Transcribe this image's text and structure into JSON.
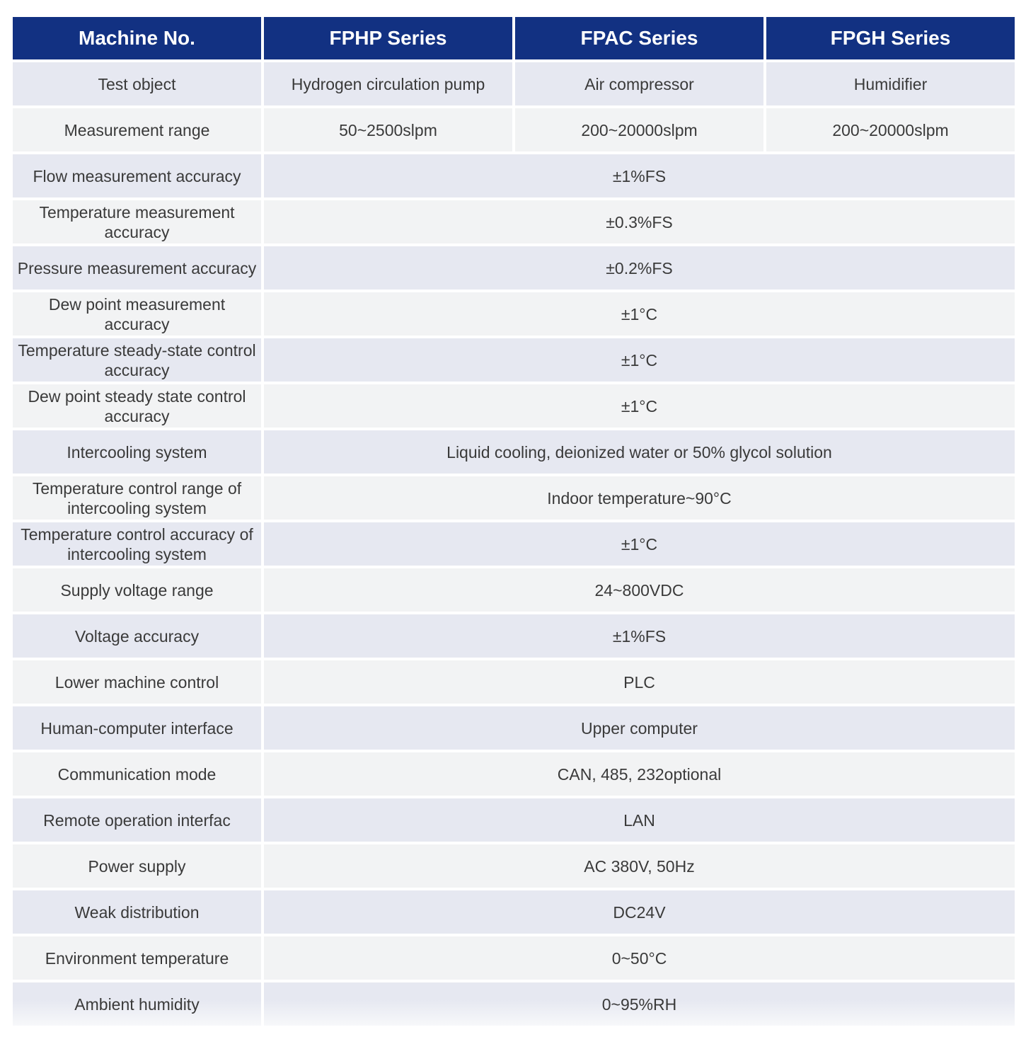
{
  "table": {
    "headers": [
      "Machine No.",
      "FPHP Series",
      "FPAC Series",
      "FPGH Series"
    ],
    "rows": [
      {
        "label": "Test object",
        "values": [
          "Hydrogen circulation pump",
          "Air compressor",
          "Humidifier"
        ]
      },
      {
        "label": "Measurement range",
        "values": [
          "50~2500slpm",
          "200~20000slpm",
          "200~20000slpm"
        ]
      },
      {
        "label": "Flow measurement accuracy",
        "value": "±1%FS"
      },
      {
        "label": "Temperature measurement accuracy",
        "value": "±0.3%FS"
      },
      {
        "label": "Pressure measurement accuracy",
        "value": "±0.2%FS"
      },
      {
        "label": "Dew point measurement accuracy",
        "value": "±1°C"
      },
      {
        "label": "Temperature steady-state control accuracy",
        "value": "±1°C"
      },
      {
        "label": "Dew point steady state control accuracy",
        "value": "±1°C"
      },
      {
        "label": "Intercooling system",
        "value": "Liquid cooling, deionized water or 50% glycol solution"
      },
      {
        "label": "Temperature control range of intercooling system",
        "value": "Indoor temperature~90°C"
      },
      {
        "label": "Temperature control accuracy of intercooling system",
        "value": "±1°C"
      },
      {
        "label": "Supply voltage range",
        "value": "24~800VDC"
      },
      {
        "label": "Voltage accuracy",
        "value": "±1%FS"
      },
      {
        "label": "Lower machine control",
        "value": "PLC"
      },
      {
        "label": "Human-computer interface",
        "value": "Upper computer"
      },
      {
        "label": "Communication mode",
        "value": "CAN, 485, 232optional"
      },
      {
        "label": "Remote operation interfac",
        "value": "LAN"
      },
      {
        "label": "Power supply",
        "value": "AC 380V, 50Hz"
      },
      {
        "label": "Weak distribution",
        "value": "DC24V"
      },
      {
        "label": "Environment temperature",
        "value": "0~50°C"
      },
      {
        "label": "Ambient humidity",
        "value": "0~95%RH"
      }
    ]
  },
  "colors": {
    "header_bg": "#123182",
    "row_odd": "#e6e8f1",
    "row_even": "#f2f3f4",
    "text": "#3a3a3a"
  }
}
